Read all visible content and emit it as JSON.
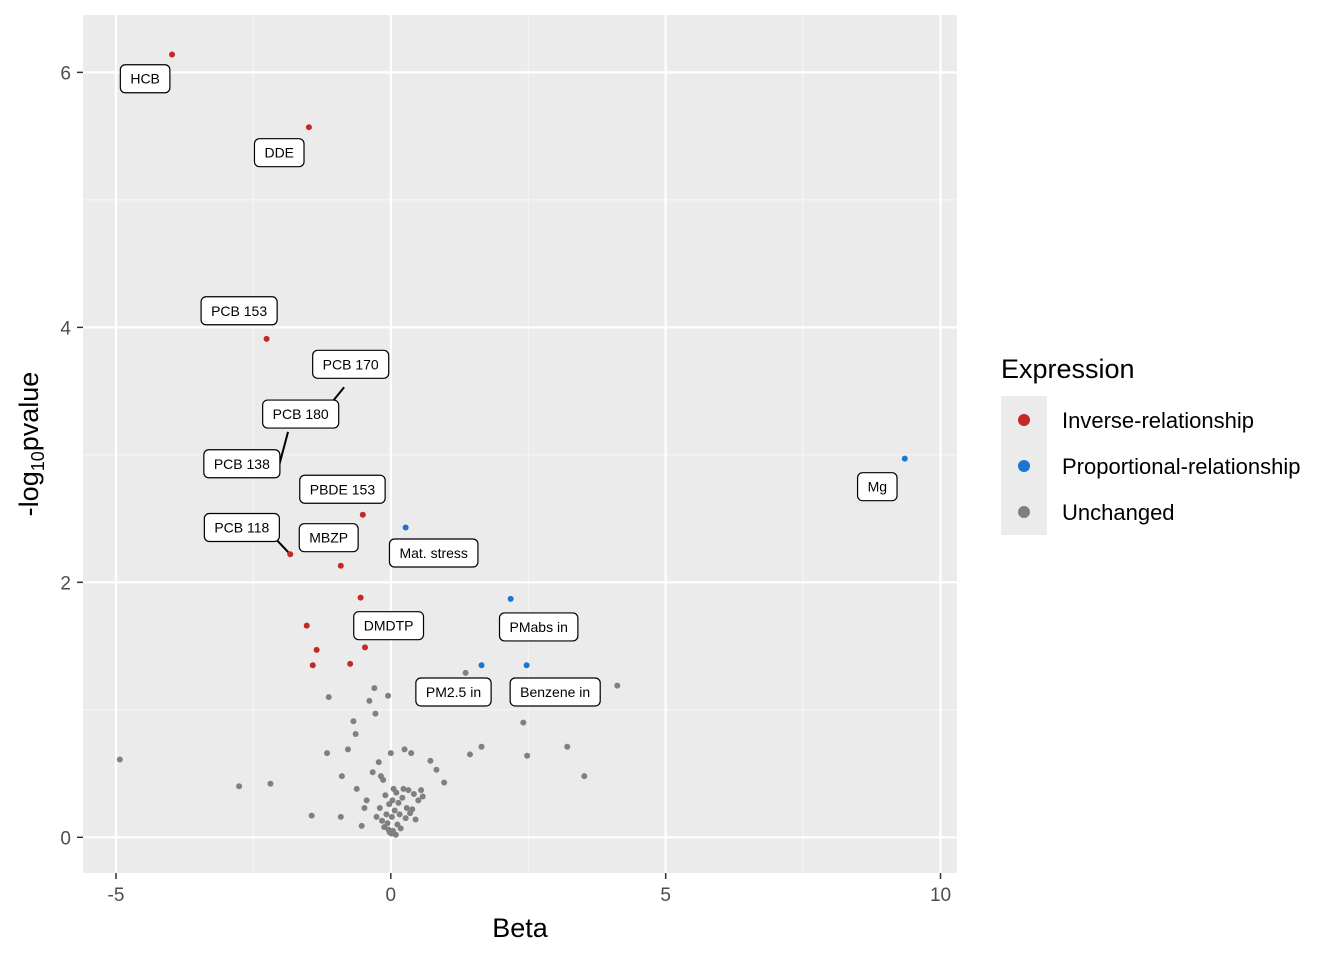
{
  "chart_data": {
    "type": "scatter",
    "title": "",
    "xlabel": "Beta",
    "ylabel_main": "-log",
    "ylabel_sub": "10",
    "ylabel_tail": "pvalue",
    "xlim": [
      -5.6,
      10.3
    ],
    "ylim": [
      -0.28,
      6.45
    ],
    "xticks": [
      -5,
      0,
      5,
      10
    ],
    "xtick_labels": [
      "-5",
      "0",
      "5",
      "10"
    ],
    "yticks": [
      0,
      2,
      4,
      6
    ],
    "ytick_labels": [
      "0",
      "2",
      "4",
      "6"
    ],
    "x_minor": [
      -2.5,
      2.5,
      7.5
    ],
    "y_minor": [
      1,
      3,
      5
    ],
    "grid": true,
    "legend": {
      "title": "Expression",
      "position": "right",
      "items": [
        {
          "label": "Inverse-relationship",
          "color": "#C62828"
        },
        {
          "label": "Proportional-relationship",
          "color": "#1976D2"
        },
        {
          "label": "Unchanged",
          "color": "#808080"
        }
      ]
    },
    "series": [
      {
        "name": "Inverse-relationship",
        "color": "#C62828",
        "points": [
          {
            "x": -3.98,
            "y": 6.14,
            "label": "HCB"
          },
          {
            "x": -1.49,
            "y": 5.57,
            "label": "DDE"
          },
          {
            "x": -2.26,
            "y": 3.91,
            "label": "PCB 153"
          },
          {
            "x": -1.83,
            "y": 2.22,
            "label": "PCB 118"
          },
          {
            "x": -0.91,
            "y": 2.13,
            "label": "MBZP"
          },
          {
            "x": -0.51,
            "y": 2.53,
            "label": "PBDE 153"
          },
          {
            "x": -0.55,
            "y": 1.88
          },
          {
            "x": -0.47,
            "y": 1.49,
            "label": "DMDTP"
          },
          {
            "x": -1.53,
            "y": 1.66
          },
          {
            "x": -1.35,
            "y": 1.47
          },
          {
            "x": -1.42,
            "y": 1.35
          },
          {
            "x": -0.74,
            "y": 1.36
          }
        ]
      },
      {
        "name": "Proportional-relationship",
        "color": "#1976D2",
        "points": [
          {
            "x": 9.35,
            "y": 2.97,
            "label": "Mg"
          },
          {
            "x": 0.27,
            "y": 2.43,
            "label": "Mat. stress"
          },
          {
            "x": 2.18,
            "y": 1.87,
            "label": "PMabs in"
          },
          {
            "x": 1.65,
            "y": 1.35,
            "label": "PM2.5 in"
          },
          {
            "x": 2.47,
            "y": 1.35,
            "label": "Benzene in"
          }
        ]
      },
      {
        "name": "Unchanged",
        "color": "#808080",
        "points": [
          {
            "x": -4.93,
            "y": 0.61
          },
          {
            "x": -2.76,
            "y": 0.4
          },
          {
            "x": -2.19,
            "y": 0.42
          },
          {
            "x": -1.44,
            "y": 0.17
          },
          {
            "x": -1.16,
            "y": 0.66
          },
          {
            "x": -1.13,
            "y": 1.1
          },
          {
            "x": -0.91,
            "y": 0.16
          },
          {
            "x": -0.89,
            "y": 0.48
          },
          {
            "x": -0.78,
            "y": 0.69
          },
          {
            "x": -0.68,
            "y": 0.91
          },
          {
            "x": -0.64,
            "y": 0.81
          },
          {
            "x": -0.62,
            "y": 0.38
          },
          {
            "x": -0.53,
            "y": 0.09
          },
          {
            "x": -0.48,
            "y": 0.23
          },
          {
            "x": -0.44,
            "y": 0.29
          },
          {
            "x": -0.39,
            "y": 1.07
          },
          {
            "x": -0.33,
            "y": 0.51
          },
          {
            "x": -0.3,
            "y": 1.17
          },
          {
            "x": -0.28,
            "y": 0.97
          },
          {
            "x": -0.26,
            "y": 0.16
          },
          {
            "x": -0.22,
            "y": 0.59
          },
          {
            "x": -0.2,
            "y": 0.23
          },
          {
            "x": -0.18,
            "y": 0.48
          },
          {
            "x": -0.16,
            "y": 0.13
          },
          {
            "x": -0.14,
            "y": 0.45
          },
          {
            "x": -0.12,
            "y": 0.08
          },
          {
            "x": -0.1,
            "y": 0.33
          },
          {
            "x": -0.08,
            "y": 0.18
          },
          {
            "x": -0.06,
            "y": 0.11
          },
          {
            "x": -0.05,
            "y": 1.11
          },
          {
            "x": -0.04,
            "y": 0.06
          },
          {
            "x": -0.03,
            "y": 0.26
          },
          {
            "x": -0.02,
            "y": 0.04
          },
          {
            "x": 0.0,
            "y": 0.66
          },
          {
            "x": 0.01,
            "y": 0.03
          },
          {
            "x": 0.02,
            "y": 0.16
          },
          {
            "x": 0.03,
            "y": 0.29
          },
          {
            "x": 0.04,
            "y": 0.05
          },
          {
            "x": 0.05,
            "y": 0.38
          },
          {
            "x": 0.07,
            "y": 0.21
          },
          {
            "x": 0.09,
            "y": 0.02
          },
          {
            "x": 0.1,
            "y": 0.35
          },
          {
            "x": 0.12,
            "y": 0.1
          },
          {
            "x": 0.14,
            "y": 0.27
          },
          {
            "x": 0.16,
            "y": 0.18
          },
          {
            "x": 0.18,
            "y": 0.07
          },
          {
            "x": 0.21,
            "y": 0.31
          },
          {
            "x": 0.23,
            "y": 0.38
          },
          {
            "x": 0.25,
            "y": 0.69
          },
          {
            "x": 0.27,
            "y": 0.15
          },
          {
            "x": 0.29,
            "y": 0.23
          },
          {
            "x": 0.32,
            "y": 0.37
          },
          {
            "x": 0.35,
            "y": 0.19
          },
          {
            "x": 0.37,
            "y": 0.66
          },
          {
            "x": 0.39,
            "y": 0.22
          },
          {
            "x": 0.42,
            "y": 0.34
          },
          {
            "x": 0.45,
            "y": 0.14
          },
          {
            "x": 0.5,
            "y": 0.29
          },
          {
            "x": 0.55,
            "y": 0.37
          },
          {
            "x": 0.58,
            "y": 0.32
          },
          {
            "x": 0.72,
            "y": 0.6
          },
          {
            "x": 0.83,
            "y": 0.53
          },
          {
            "x": 0.97,
            "y": 0.43
          },
          {
            "x": 1.36,
            "y": 1.29
          },
          {
            "x": 1.44,
            "y": 0.65
          },
          {
            "x": 1.65,
            "y": 0.71
          },
          {
            "x": 2.41,
            "y": 0.9
          },
          {
            "x": 2.48,
            "y": 0.64
          },
          {
            "x": 3.21,
            "y": 0.71
          },
          {
            "x": 3.52,
            "y": 0.48
          },
          {
            "x": 4.12,
            "y": 1.19
          }
        ]
      }
    ],
    "annotations": [
      {
        "text": "HCB",
        "x": -4.47,
        "y": 5.95
      },
      {
        "text": "DDE",
        "x": -2.03,
        "y": 5.37
      },
      {
        "text": "PCB 153",
        "x": -2.76,
        "y": 4.13
      },
      {
        "text": "PCB 170",
        "x": -0.73,
        "y": 3.71
      },
      {
        "text": "PCB 180",
        "x": -1.64,
        "y": 3.32
      },
      {
        "text": "PCB 138",
        "x": -2.71,
        "y": 2.93
      },
      {
        "text": "PBDE 153",
        "x": -0.88,
        "y": 2.73
      },
      {
        "text": "PCB 118",
        "x": -2.71,
        "y": 2.43
      },
      {
        "text": "MBZP",
        "x": -1.13,
        "y": 2.35
      },
      {
        "text": "Mat. stress",
        "x": 0.78,
        "y": 2.23
      },
      {
        "text": "Mg",
        "x": 8.85,
        "y": 2.75
      },
      {
        "text": "DMDTP",
        "x": -0.04,
        "y": 1.66
      },
      {
        "text": "PMabs in",
        "x": 2.69,
        "y": 1.65
      },
      {
        "text": "PM2.5 in",
        "x": 1.14,
        "y": 1.14
      },
      {
        "text": "Benzene in",
        "x": 2.99,
        "y": 1.14
      }
    ],
    "connectors": [
      {
        "from": [
          -1.87,
          3.18
        ],
        "to": [
          -2.03,
          2.92
        ]
      },
      {
        "from": [
          -0.85,
          3.53
        ],
        "to": [
          -1.15,
          3.37
        ]
      },
      {
        "from": [
          -2.18,
          2.38
        ],
        "to": [
          -1.83,
          2.22
        ]
      }
    ]
  }
}
